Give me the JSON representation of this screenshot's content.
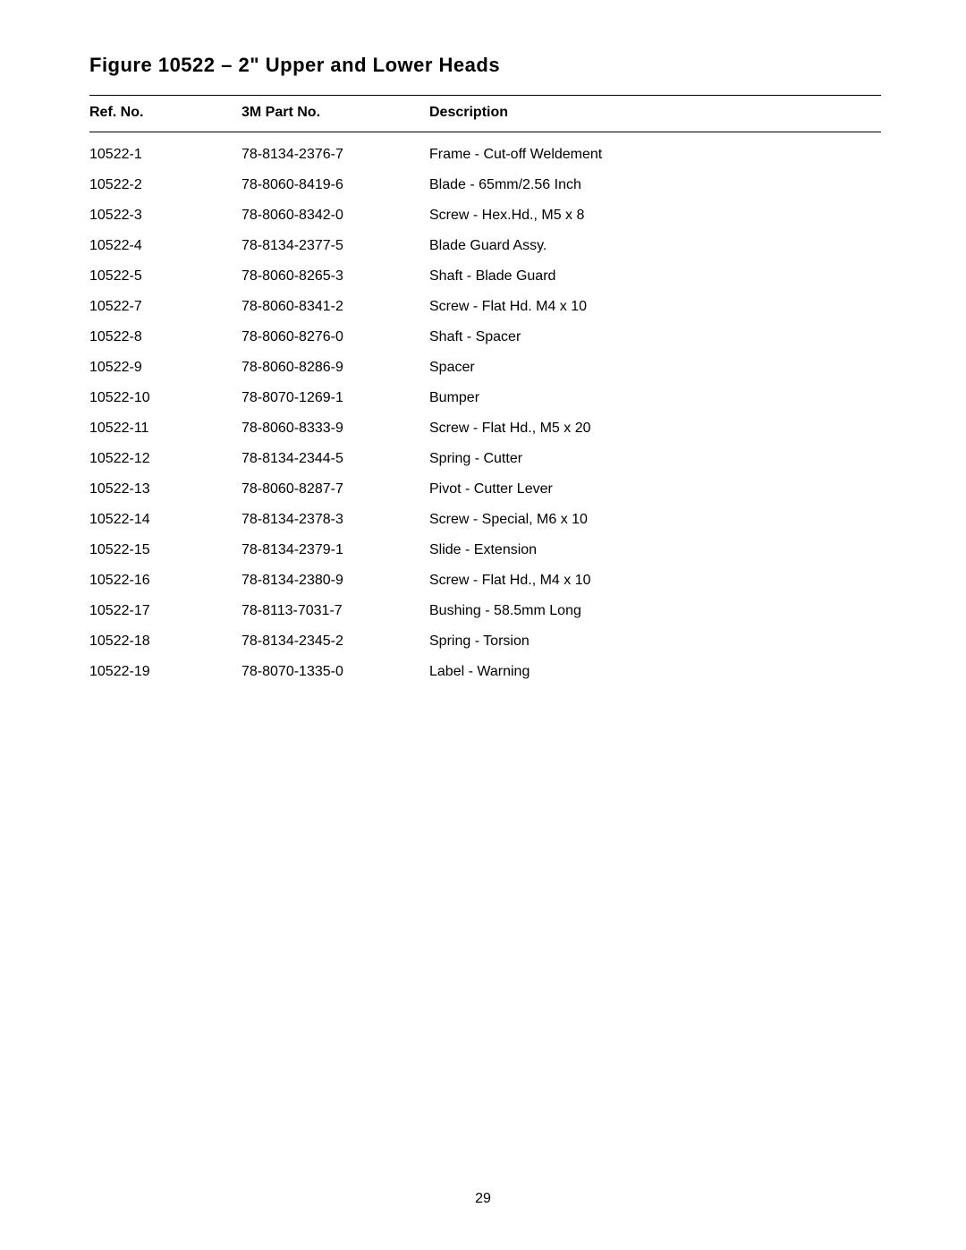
{
  "title": "Figure 10522 – 2\" Upper and Lower Heads",
  "columns": {
    "ref": "Ref. No.",
    "part": "3M Part No.",
    "desc": "Description"
  },
  "rows": [
    {
      "ref": "10522-1",
      "part": "78-8134-2376-7",
      "desc": "Frame - Cut-off Weldement"
    },
    {
      "ref": "10522-2",
      "part": "78-8060-8419-6",
      "desc": "Blade - 65mm/2.56 Inch"
    },
    {
      "ref": "10522-3",
      "part": "78-8060-8342-0",
      "desc": "Screw - Hex.Hd., M5 x 8"
    },
    {
      "ref": "10522-4",
      "part": "78-8134-2377-5",
      "desc": "Blade Guard Assy."
    },
    {
      "ref": "10522-5",
      "part": "78-8060-8265-3",
      "desc": "Shaft - Blade Guard"
    },
    {
      "ref": "10522-7",
      "part": "78-8060-8341-2",
      "desc": "Screw - Flat Hd. M4 x 10"
    },
    {
      "ref": "10522-8",
      "part": "78-8060-8276-0",
      "desc": "Shaft - Spacer"
    },
    {
      "ref": "10522-9",
      "part": "78-8060-8286-9",
      "desc": "Spacer"
    },
    {
      "ref": "10522-10",
      "part": "78-8070-1269-1",
      "desc": "Bumper"
    },
    {
      "ref": "10522-11",
      "part": "78-8060-8333-9",
      "desc": "Screw - Flat Hd., M5 x 20"
    },
    {
      "ref": "10522-12",
      "part": "78-8134-2344-5",
      "desc": "Spring - Cutter"
    },
    {
      "ref": "10522-13",
      "part": "78-8060-8287-7",
      "desc": "Pivot - Cutter Lever"
    },
    {
      "ref": "10522-14",
      "part": "78-8134-2378-3",
      "desc": "Screw - Special, M6 x 10"
    },
    {
      "ref": "10522-15",
      "part": "78-8134-2379-1",
      "desc": "Slide - Extension"
    },
    {
      "ref": "10522-16",
      "part": "78-8134-2380-9",
      "desc": "Screw - Flat Hd., M4 x 10"
    },
    {
      "ref": "10522-17",
      "part": "78-8113-7031-7",
      "desc": "Bushing - 58.5mm Long"
    },
    {
      "ref": "10522-18",
      "part": "78-8134-2345-2",
      "desc": "Spring - Torsion"
    },
    {
      "ref": "10522-19",
      "part": "78-8070-1335-0",
      "desc": "Label - Warning"
    }
  ],
  "pageNumber": "29"
}
